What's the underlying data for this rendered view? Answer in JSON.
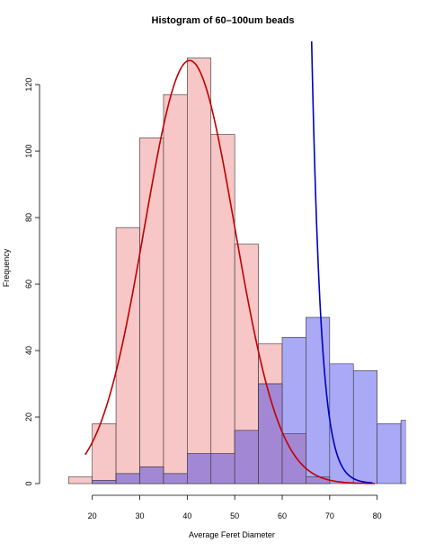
{
  "chart_data": {
    "type": "bar",
    "title": "Histogram of 60–100um beads",
    "xlabel": "Average Feret Diameter",
    "ylabel": "Frequency",
    "x_ticks": [
      20,
      30,
      40,
      50,
      60,
      70,
      80
    ],
    "y_ticks": [
      0,
      20,
      40,
      60,
      80,
      100,
      120
    ],
    "xlim": [
      12.3,
      86.5
    ],
    "ylim": [
      0,
      133
    ],
    "series": [
      {
        "color": "#f7c6c6",
        "bins": [
          {
            "x0": 15,
            "x1": 20,
            "count": 2
          },
          {
            "x0": 20,
            "x1": 25,
            "count": 18
          },
          {
            "x0": 25,
            "x1": 30,
            "count": 77
          },
          {
            "x0": 30,
            "x1": 35,
            "count": 104
          },
          {
            "x0": 35,
            "x1": 40,
            "count": 117
          },
          {
            "x0": 40,
            "x1": 45,
            "count": 128
          },
          {
            "x0": 45,
            "x1": 50,
            "count": 105
          },
          {
            "x0": 50,
            "x1": 55,
            "count": 72
          },
          {
            "x0": 55,
            "x1": 60,
            "count": 42
          },
          {
            "x0": 60,
            "x1": 65,
            "count": 15
          },
          {
            "x0": 65,
            "x1": 70,
            "count": 2
          }
        ],
        "curve": {
          "color": "#c00000",
          "type": "normal",
          "mean": 40.5,
          "sd": 9.5,
          "scale": 3030,
          "x_start": 18.5,
          "x_end": 79.5
        }
      },
      {
        "color": "#a9a9f6",
        "bins": [
          {
            "x0": 20,
            "x1": 25,
            "count": 1
          },
          {
            "x0": 25,
            "x1": 30,
            "count": 3
          },
          {
            "x0": 30,
            "x1": 35,
            "count": 5
          },
          {
            "x0": 35,
            "x1": 40,
            "count": 3
          },
          {
            "x0": 40,
            "x1": 45,
            "count": 9
          },
          {
            "x0": 45,
            "x1": 50,
            "count": 9
          },
          {
            "x0": 50,
            "x1": 55,
            "count": 16
          },
          {
            "x0": 55,
            "x1": 60,
            "count": 30
          },
          {
            "x0": 60,
            "x1": 65,
            "count": 44
          },
          {
            "x0": 65,
            "x1": 70,
            "count": 50
          },
          {
            "x0": 70,
            "x1": 75,
            "count": 36
          },
          {
            "x0": 75,
            "x1": 80,
            "count": 34
          },
          {
            "x0": 80,
            "x1": 85,
            "count": 18
          },
          {
            "x0": 85,
            "x1": 90,
            "count": 19
          }
        ],
        "curve": {
          "color": "#0000c0",
          "type": "exponential",
          "x_at_top": 66.2,
          "y_at_top": 133,
          "x_at_bottom": 79,
          "y_at_bottom": 0.2
        }
      }
    ],
    "overlap_color": "#a288d4"
  }
}
